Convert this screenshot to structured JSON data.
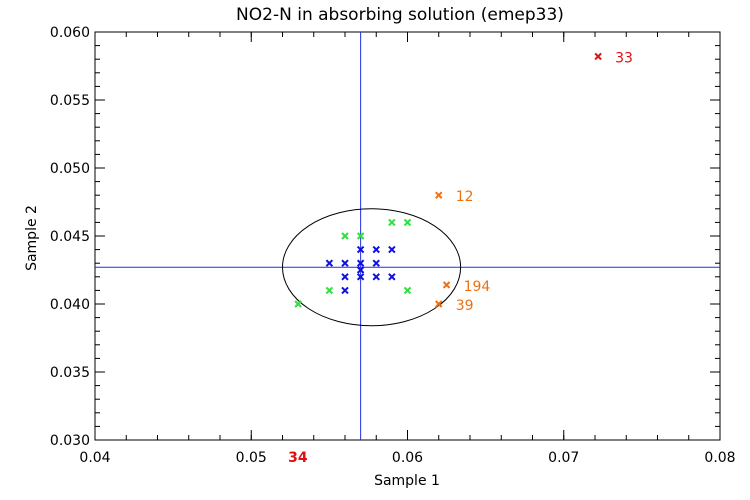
{
  "chart_data": {
    "type": "scatter",
    "title": "NO2-N in absorbing solution (emep33)",
    "xlabel": "Sample 1",
    "ylabel": "Sample 2",
    "xlim": [
      0.04,
      0.08
    ],
    "ylim": [
      0.03,
      0.06
    ],
    "xticks": [
      "0.04",
      "0.05",
      "0.06",
      "0.07",
      "0.08"
    ],
    "yticks": [
      "0.030",
      "0.035",
      "0.040",
      "0.045",
      "0.050",
      "0.055",
      "0.060"
    ],
    "xtick_values": [
      0.04,
      0.05,
      0.06,
      0.07,
      0.08
    ],
    "ytick_values": [
      0.03,
      0.035,
      0.04,
      0.045,
      0.05,
      0.055,
      0.06
    ],
    "xminor_step": 0.002,
    "yminor_step": 0.001,
    "reference_lines": {
      "x": 0.057,
      "y": 0.0427,
      "color": "#2030e0"
    },
    "ellipse": {
      "cx": 0.0577,
      "cy": 0.0427,
      "rx": 0.0057,
      "ry": 0.0043,
      "color": "#000000"
    },
    "colors": {
      "blue": "#1010e0",
      "green": "#30e040",
      "orange": "#f07010",
      "red": "#e01010"
    },
    "series": [
      {
        "name": "blue",
        "color": "#1010e0",
        "points": [
          {
            "x": 0.055,
            "y": 0.043
          },
          {
            "x": 0.056,
            "y": 0.043
          },
          {
            "x": 0.056,
            "y": 0.042
          },
          {
            "x": 0.056,
            "y": 0.041
          },
          {
            "x": 0.057,
            "y": 0.044
          },
          {
            "x": 0.057,
            "y": 0.043
          },
          {
            "x": 0.057,
            "y": 0.0425
          },
          {
            "x": 0.057,
            "y": 0.042
          },
          {
            "x": 0.058,
            "y": 0.044
          },
          {
            "x": 0.058,
            "y": 0.043
          },
          {
            "x": 0.058,
            "y": 0.042
          },
          {
            "x": 0.059,
            "y": 0.044
          },
          {
            "x": 0.059,
            "y": 0.042
          }
        ]
      },
      {
        "name": "green",
        "color": "#30e040",
        "points": [
          {
            "x": 0.056,
            "y": 0.045
          },
          {
            "x": 0.057,
            "y": 0.045
          },
          {
            "x": 0.059,
            "y": 0.046
          },
          {
            "x": 0.06,
            "y": 0.046
          },
          {
            "x": 0.055,
            "y": 0.041
          },
          {
            "x": 0.053,
            "y": 0.04
          },
          {
            "x": 0.06,
            "y": 0.041
          }
        ]
      },
      {
        "name": "orange",
        "color": "#f07010",
        "points": [
          {
            "x": 0.062,
            "y": 0.048,
            "label": "12"
          },
          {
            "x": 0.0625,
            "y": 0.0414,
            "label": "194"
          },
          {
            "x": 0.062,
            "y": 0.04,
            "label": "39"
          }
        ]
      },
      {
        "name": "red",
        "color": "#e01010",
        "points": [
          {
            "x": 0.0722,
            "y": 0.0582,
            "label": "33"
          }
        ]
      }
    ],
    "out_of_range_labels": [
      {
        "label": "34",
        "x": 0.053,
        "color": "#e01010"
      }
    ]
  }
}
